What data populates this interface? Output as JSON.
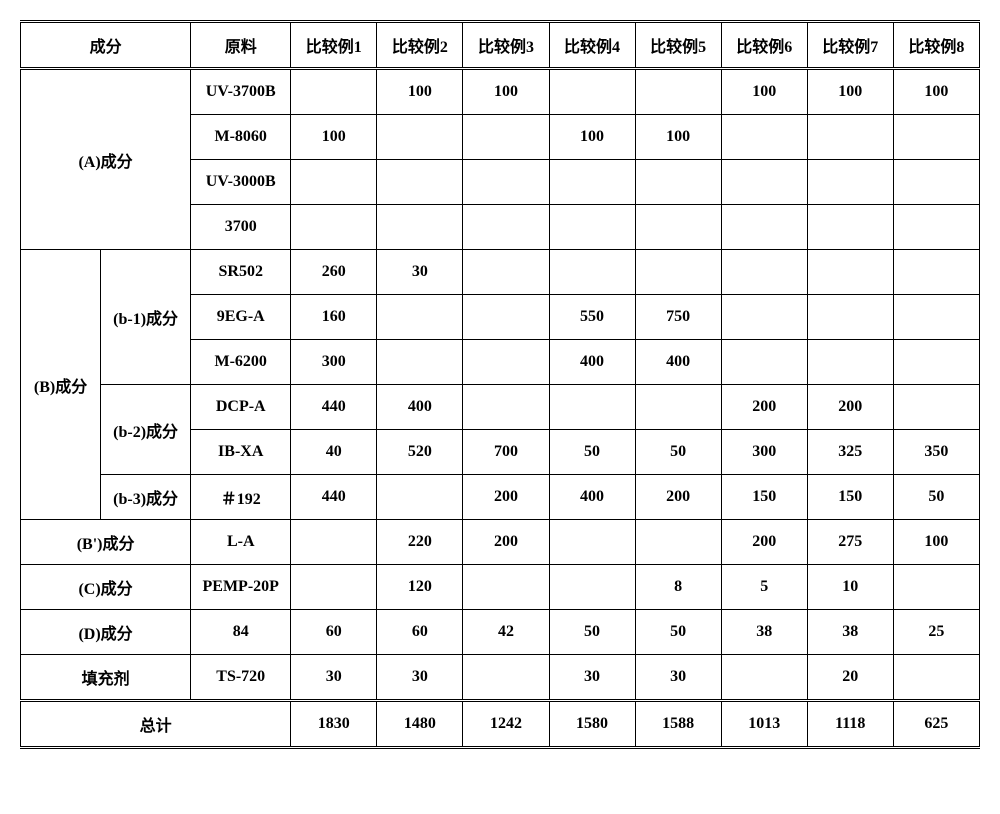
{
  "headers": {
    "component": "成分",
    "raw": "原料",
    "cols": [
      "比较例1",
      "比较例2",
      "比较例3",
      "比较例4",
      "比较例5",
      "比较例6",
      "比较例7",
      "比较例8"
    ]
  },
  "groups": {
    "A": "(A)成分",
    "B": "(B)成分",
    "b1": "(b-1)成分",
    "b2": "(b-2)成分",
    "b3": "(b-3)成分",
    "Bp": "(B')成分",
    "C": "(C)成分",
    "D": "(D)成分",
    "filler": "填充剂",
    "total": "总计"
  },
  "raws": {
    "uv3700b": "UV-3700B",
    "m8060": "M-8060",
    "uv3000b": "UV-3000B",
    "r3700": "3700",
    "sr502": "SR502",
    "eg9a": "9EG-A",
    "m6200": "M-6200",
    "dcpa": "DCP-A",
    "ibxa": "IB-XA",
    "n192": "＃192",
    "la": "L-A",
    "pemp": "PEMP-20P",
    "r84": "84",
    "ts720": "TS-720"
  },
  "vals": {
    "uv3700b": [
      "",
      "100",
      "100",
      "",
      "",
      "100",
      "100",
      "100"
    ],
    "m8060": [
      "100",
      "",
      "",
      "100",
      "100",
      "",
      "",
      ""
    ],
    "uv3000b": [
      "",
      "",
      "",
      "",
      "",
      "",
      "",
      ""
    ],
    "r3700": [
      "",
      "",
      "",
      "",
      "",
      "",
      "",
      ""
    ],
    "sr502": [
      "260",
      "30",
      "",
      "",
      "",
      "",
      "",
      ""
    ],
    "eg9a": [
      "160",
      "",
      "",
      "550",
      "750",
      "",
      "",
      ""
    ],
    "m6200": [
      "300",
      "",
      "",
      "400",
      "400",
      "",
      "",
      ""
    ],
    "dcpa": [
      "440",
      "400",
      "",
      "",
      "",
      "200",
      "200",
      ""
    ],
    "ibxa": [
      "40",
      "520",
      "700",
      "50",
      "50",
      "300",
      "325",
      "350"
    ],
    "n192": [
      "440",
      "",
      "200",
      "400",
      "200",
      "150",
      "150",
      "50"
    ],
    "la": [
      "",
      "220",
      "200",
      "",
      "",
      "200",
      "275",
      "100"
    ],
    "pemp": [
      "",
      "120",
      "",
      "",
      "8",
      "5",
      "10",
      ""
    ],
    "r84": [
      "60",
      "60",
      "42",
      "50",
      "50",
      "38",
      "38",
      "25"
    ],
    "ts720": [
      "30",
      "30",
      "",
      "30",
      "30",
      "",
      "20",
      ""
    ],
    "total": [
      "1830",
      "1480",
      "1242",
      "1580",
      "1588",
      "1013",
      "1118",
      "625"
    ]
  }
}
